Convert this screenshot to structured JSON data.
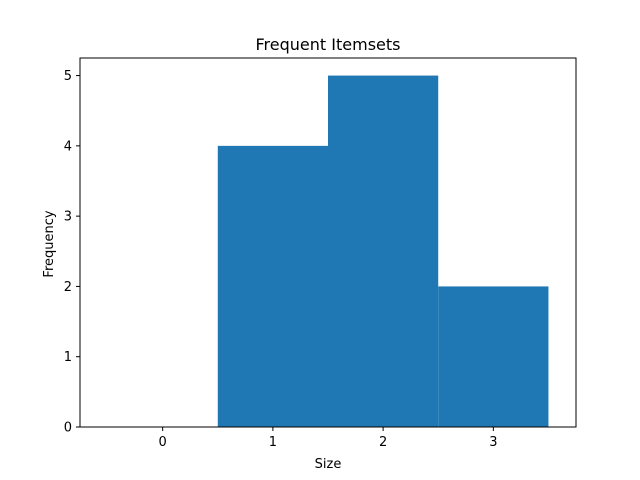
{
  "chart_data": {
    "type": "bar",
    "title": "Frequent Itemsets",
    "xlabel": "Size",
    "ylabel": "Frequency",
    "categories": [
      "0",
      "1",
      "2",
      "3"
    ],
    "x": [
      0,
      1,
      2,
      3
    ],
    "values": [
      0,
      4,
      5,
      2
    ],
    "xlim": [
      -0.75,
      3.75
    ],
    "ylim": [
      0,
      5.25
    ],
    "xticks": [
      "0",
      "1",
      "2",
      "3"
    ],
    "yticks": [
      "0",
      "1",
      "2",
      "3",
      "4",
      "5"
    ],
    "bar_color": "#1f77b4",
    "grid": false,
    "legend": "none"
  }
}
